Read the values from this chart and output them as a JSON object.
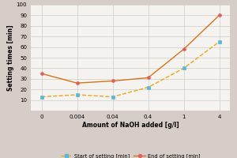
{
  "x_values": [
    0,
    0.004,
    0.04,
    0.4,
    1,
    4
  ],
  "x_labels": [
    "0",
    "0.004",
    "0.04",
    "0.4",
    "1",
    "4"
  ],
  "start_setting": [
    13,
    15,
    13,
    22,
    40,
    65
  ],
  "end_setting": [
    35,
    26,
    28,
    31,
    58,
    90
  ],
  "start_line_color": "#e8a820",
  "end_line_color": "#d4731a",
  "marker_color_start": "#5ab8d4",
  "marker_color_end": "#e06060",
  "ylabel": "Setting times [min]",
  "xlabel": "Amount of NaOH added [g/l]",
  "legend_start": "Start of setting [min]",
  "legend_end": "End of setting [min]",
  "ylim": [
    0,
    100
  ],
  "yticks": [
    10,
    20,
    30,
    40,
    50,
    60,
    70,
    80,
    90,
    100
  ],
  "background_color": "#d6cdc8",
  "plot_bg_color": "#f5f3ef",
  "grid_color": "#d0ccc8",
  "axis_fontsize": 5.5,
  "tick_fontsize": 5.0,
  "legend_fontsize": 4.8
}
